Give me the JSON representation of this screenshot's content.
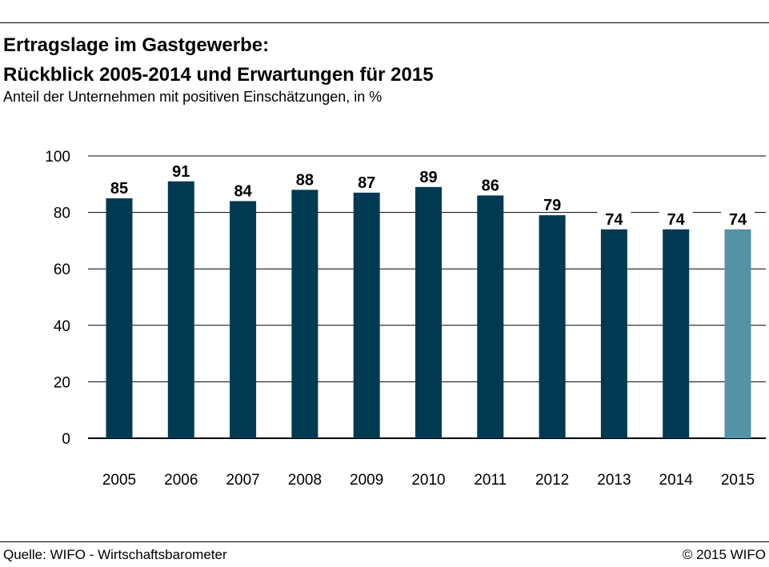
{
  "header": {
    "title_line1": "Ertragslage im Gastgewerbe:",
    "title_line2": "Rückblick 2005-2014 und Erwartungen für 2015",
    "subtitle": "Anteil der Unternehmen mit positiven Einschätzungen, in %"
  },
  "footer": {
    "source": "Quelle: WIFO - Wirtschaftsbarometer",
    "copyright": "© 2015 WIFO"
  },
  "colors": {
    "bar": "#003a52",
    "bar_forecast": "#5492a8",
    "grid": "#000000"
  },
  "chart_data": {
    "type": "bar",
    "title": "Ertragslage im Gastgewerbe: Rückblick 2005-2014 und Erwartungen für 2015",
    "subtitle": "Anteil der Unternehmen mit positiven Einschätzungen, in %",
    "xlabel": "",
    "ylabel": "",
    "categories": [
      "2005",
      "2006",
      "2007",
      "2008",
      "2009",
      "2010",
      "2011",
      "2012",
      "2013",
      "2014",
      "2015"
    ],
    "values": [
      85,
      91,
      84,
      88,
      87,
      89,
      86,
      79,
      74,
      74,
      74
    ],
    "data_labels": [
      "85",
      "91",
      "84",
      "88",
      "87",
      "89",
      "86",
      "79",
      "74",
      "74",
      "74"
    ],
    "highlighted_category": "2015",
    "ylim": [
      0,
      100
    ],
    "yticks": [
      0,
      20,
      40,
      60,
      80,
      100
    ],
    "grid": true,
    "legend": "none"
  }
}
